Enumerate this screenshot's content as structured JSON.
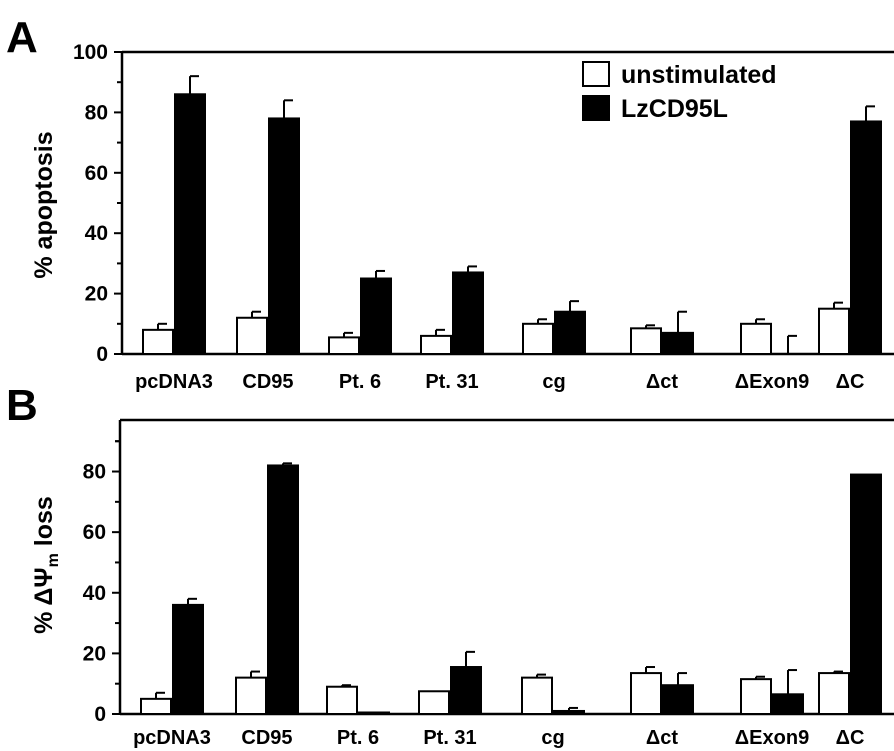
{
  "chart_data": [
    {
      "panel": "A",
      "type": "bar",
      "categories": [
        "pcDNA3",
        "CD95",
        "Pt. 6",
        "Pt. 31",
        "cg",
        "Δct",
        "ΔExon9",
        "ΔC"
      ],
      "series": [
        {
          "name": "unstimulated",
          "color": "#ffffff",
          "values": [
            8,
            12,
            5.5,
            6,
            10,
            8.5,
            10,
            15
          ],
          "errors": [
            2,
            2,
            1.5,
            2,
            1.5,
            1,
            1.5,
            2
          ]
        },
        {
          "name": "LzCD95L",
          "color": "#000000",
          "values": [
            86,
            78,
            25,
            27,
            14,
            7,
            0,
            77
          ],
          "errors": [
            6,
            6,
            2.5,
            2,
            3.5,
            7,
            6,
            5
          ]
        }
      ],
      "ylabel": "% apoptosis",
      "ylim": [
        0,
        100
      ],
      "yticks": [
        0,
        20,
        40,
        60,
        80,
        100
      ],
      "legend": {
        "placement": "top-right",
        "entries": [
          "unstimulated",
          "LzCD95L"
        ]
      }
    },
    {
      "panel": "B",
      "type": "bar",
      "categories": [
        "pcDNA3",
        "CD95",
        "Pt. 6",
        "Pt. 31",
        "cg",
        "Δct",
        "ΔExon9",
        "ΔC"
      ],
      "series": [
        {
          "name": "unstimulated",
          "color": "#ffffff",
          "values": [
            5,
            12,
            9,
            7.5,
            12,
            13.5,
            11.5,
            13.5
          ],
          "errors": [
            2,
            2,
            0.5,
            0,
            1,
            2,
            0.8,
            0.5
          ]
        },
        {
          "name": "LzCD95L",
          "color": "#000000",
          "values": [
            36,
            82,
            0.5,
            15.5,
            1,
            9.5,
            6.5,
            79
          ],
          "errors": [
            2,
            0.7,
            0,
            5,
            1,
            4,
            8,
            0
          ]
        }
      ],
      "ylabel_parts": {
        "prefix": "% ΔΨ",
        "subscript": "m",
        "suffix": " loss"
      },
      "ylim": [
        0,
        97
      ],
      "yticks": [
        0,
        20,
        40,
        60,
        80
      ],
      "legend": null
    }
  ]
}
